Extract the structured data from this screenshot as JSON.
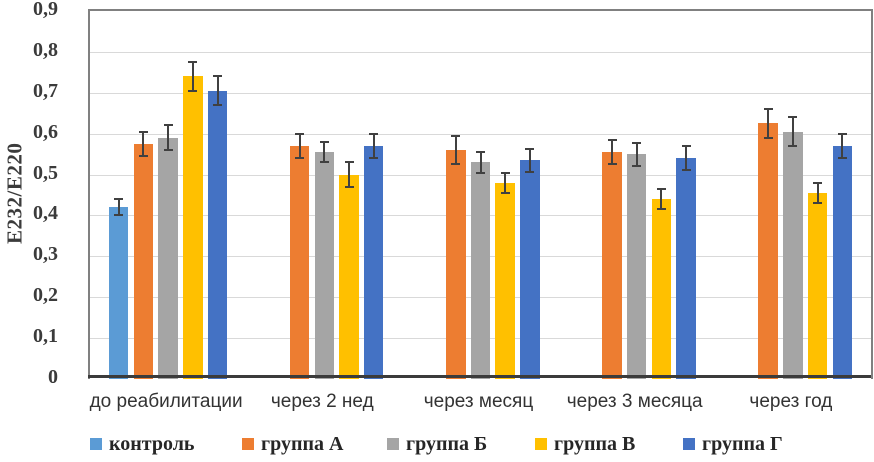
{
  "chart_data": {
    "type": "bar",
    "title": "",
    "xlabel": "",
    "ylabel": "Е232/Е220",
    "ylim": [
      0,
      0.9
    ],
    "ytick_step": 0.1,
    "ytick_labels": [
      "0",
      "0,1",
      "0,2",
      "0,3",
      "0,4",
      "0,5",
      "0,6",
      "0,7",
      "0,8",
      "0,9"
    ],
    "decimal_separator": ",",
    "grid": true,
    "error_bars": true,
    "legend_position": "bottom",
    "categories": [
      "до реабилитации",
      "через 2 нед",
      "через месяц",
      "через 3 месяца",
      "через год"
    ],
    "series": [
      {
        "name": "контроль",
        "color": "#5B9BD5",
        "values": [
          0.42,
          null,
          null,
          null,
          null
        ],
        "errors": [
          0.02,
          null,
          null,
          null,
          null
        ]
      },
      {
        "name": "группа А",
        "color": "#ED7D31",
        "values": [
          0.575,
          0.57,
          0.56,
          0.555,
          0.625
        ],
        "errors": [
          0.03,
          0.03,
          0.035,
          0.03,
          0.035
        ]
      },
      {
        "name": "группа Б",
        "color": "#A5A5A5",
        "values": [
          0.59,
          0.555,
          0.53,
          0.55,
          0.605
        ],
        "errors": [
          0.03,
          0.025,
          0.025,
          0.028,
          0.035
        ]
      },
      {
        "name": "группа В",
        "color": "#FFC000",
        "values": [
          0.74,
          0.5,
          0.48,
          0.44,
          0.455
        ],
        "errors": [
          0.035,
          0.03,
          0.025,
          0.025,
          0.025
        ]
      },
      {
        "name": "группа Г",
        "color": "#4472C4",
        "values": [
          0.705,
          0.57,
          0.535,
          0.54,
          0.57
        ],
        "errors": [
          0.035,
          0.03,
          0.028,
          0.03,
          0.03
        ]
      }
    ]
  }
}
